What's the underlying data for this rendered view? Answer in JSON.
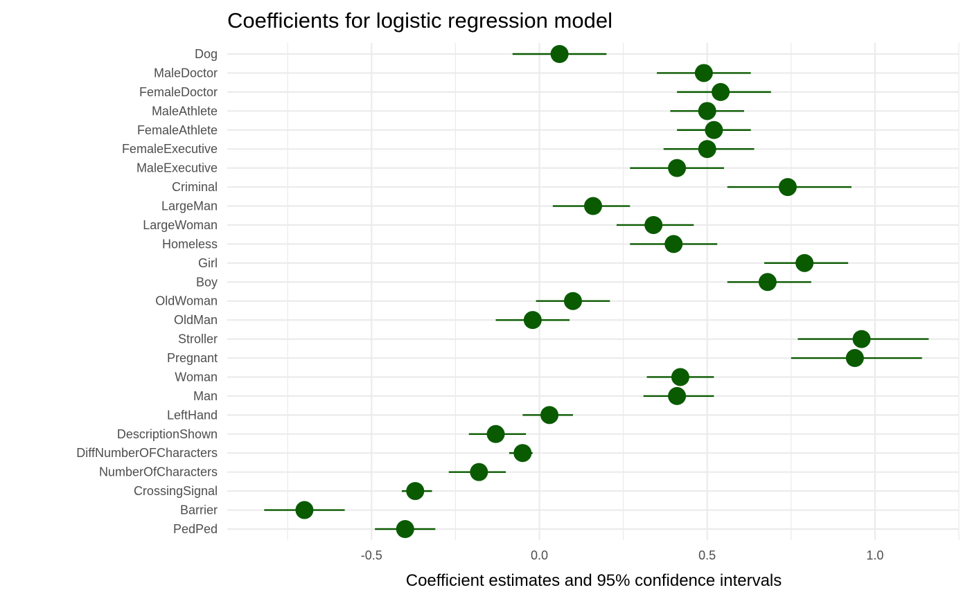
{
  "chart_data": {
    "type": "scatter",
    "title": "Coefficients for logistic regression model",
    "xlabel": "Coefficient estimates and 95% confidence intervals",
    "ylabel": "",
    "xlim": [
      -0.93,
      1.25
    ],
    "x_ticks": [
      -0.5,
      0.0,
      0.5,
      1.0
    ],
    "x_tick_labels": [
      "-0.5",
      "0.0",
      "0.5",
      "1.0"
    ],
    "grid": true,
    "point_color": "#0a5a00",
    "grid_color": "#ebebeb",
    "items": [
      {
        "label": "Dog",
        "estimate": 0.06,
        "lower": -0.08,
        "upper": 0.2
      },
      {
        "label": "MaleDoctor",
        "estimate": 0.49,
        "lower": 0.35,
        "upper": 0.63
      },
      {
        "label": "FemaleDoctor",
        "estimate": 0.54,
        "lower": 0.41,
        "upper": 0.69
      },
      {
        "label": "MaleAthlete",
        "estimate": 0.5,
        "lower": 0.39,
        "upper": 0.61
      },
      {
        "label": "FemaleAthlete",
        "estimate": 0.52,
        "lower": 0.41,
        "upper": 0.63
      },
      {
        "label": "FemaleExecutive",
        "estimate": 0.5,
        "lower": 0.37,
        "upper": 0.64
      },
      {
        "label": "MaleExecutive",
        "estimate": 0.41,
        "lower": 0.27,
        "upper": 0.55
      },
      {
        "label": "Criminal",
        "estimate": 0.74,
        "lower": 0.56,
        "upper": 0.93
      },
      {
        "label": "LargeMan",
        "estimate": 0.16,
        "lower": 0.04,
        "upper": 0.27
      },
      {
        "label": "LargeWoman",
        "estimate": 0.34,
        "lower": 0.23,
        "upper": 0.46
      },
      {
        "label": "Homeless",
        "estimate": 0.4,
        "lower": 0.27,
        "upper": 0.53
      },
      {
        "label": "Girl",
        "estimate": 0.79,
        "lower": 0.67,
        "upper": 0.92
      },
      {
        "label": "Boy",
        "estimate": 0.68,
        "lower": 0.56,
        "upper": 0.81
      },
      {
        "label": "OldWoman",
        "estimate": 0.1,
        "lower": -0.01,
        "upper": 0.21
      },
      {
        "label": "OldMan",
        "estimate": -0.02,
        "lower": -0.13,
        "upper": 0.09
      },
      {
        "label": "Stroller",
        "estimate": 0.96,
        "lower": 0.77,
        "upper": 1.16
      },
      {
        "label": "Pregnant",
        "estimate": 0.94,
        "lower": 0.75,
        "upper": 1.14
      },
      {
        "label": "Woman",
        "estimate": 0.42,
        "lower": 0.32,
        "upper": 0.52
      },
      {
        "label": "Man",
        "estimate": 0.41,
        "lower": 0.31,
        "upper": 0.52
      },
      {
        "label": "LeftHand",
        "estimate": 0.03,
        "lower": -0.05,
        "upper": 0.1
      },
      {
        "label": "DescriptionShown",
        "estimate": -0.13,
        "lower": -0.21,
        "upper": -0.04
      },
      {
        "label": "DiffNumberOFCharacters",
        "estimate": -0.05,
        "lower": -0.09,
        "upper": -0.02
      },
      {
        "label": "NumberOfCharacters",
        "estimate": -0.18,
        "lower": -0.27,
        "upper": -0.1
      },
      {
        "label": "CrossingSignal",
        "estimate": -0.37,
        "lower": -0.41,
        "upper": -0.32
      },
      {
        "label": "Barrier",
        "estimate": -0.7,
        "lower": -0.82,
        "upper": -0.58
      },
      {
        "label": "PedPed",
        "estimate": -0.4,
        "lower": -0.49,
        "upper": -0.31
      }
    ]
  }
}
